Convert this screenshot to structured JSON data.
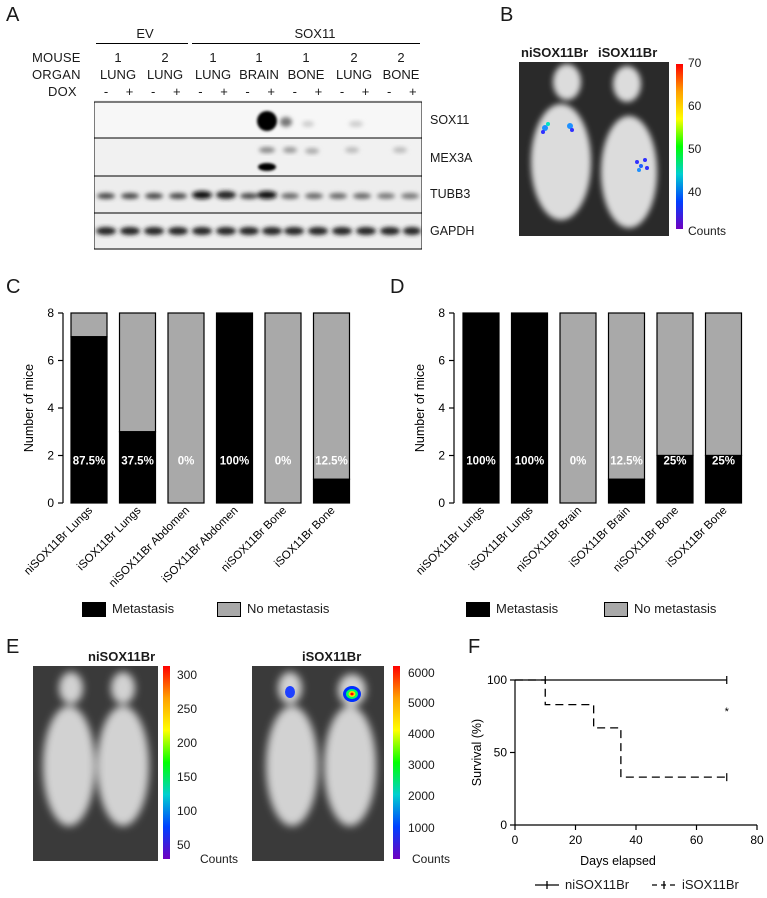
{
  "panels": {
    "A": "A",
    "B": "B",
    "C": "C",
    "D": "D",
    "E": "E",
    "F": "F"
  },
  "panelA": {
    "row_titles": [
      "MOUSE",
      "ORGAN",
      "DOX"
    ],
    "groups": [
      {
        "label": "EV"
      },
      {
        "label": "SOX11"
      }
    ],
    "mouse": [
      "1",
      "2",
      "1",
      "1",
      "1",
      "2",
      "2"
    ],
    "organ": [
      "LUNG",
      "LUNG",
      "LUNG",
      "BRAIN",
      "BONE",
      "LUNG",
      "BONE"
    ],
    "dox": [
      "-",
      "+",
      "-",
      "+",
      "-",
      "+",
      "-",
      "+",
      "-",
      "+",
      "-",
      "+",
      "-",
      "+"
    ],
    "blots": [
      "SOX11",
      "MEX3A",
      "TUBB3",
      "GAPDH"
    ]
  },
  "panelB": {
    "title_left": "niSOX11Br",
    "title_right": "iSOX11Br",
    "scale_ticks": [
      "70",
      "60",
      "50",
      "40"
    ],
    "scale_label": "Counts"
  },
  "chart_data": [
    {
      "type": "bar",
      "panel": "C",
      "ylabel": "Number of mice",
      "ylim": [
        0,
        8
      ],
      "yticks": [
        0,
        2,
        4,
        6,
        8
      ],
      "categories": [
        "niSOX11Br Lungs",
        "iSOX11Br Lungs",
        "niSOX11Br Abdomen",
        "iSOX11Br Abdomen",
        "niSOX11Br Bone",
        "iSOX11Br Bone"
      ],
      "series": [
        {
          "name": "Metastasis",
          "values": [
            7,
            3,
            0,
            8,
            0,
            1
          ]
        },
        {
          "name": "No metastasis",
          "values": [
            1,
            5,
            8,
            0,
            8,
            7
          ]
        }
      ],
      "data_labels": [
        "87.5%",
        "37.5%",
        "0%",
        "100%",
        "0%",
        "12.5%"
      ],
      "legend_position": "bottom"
    },
    {
      "type": "bar",
      "panel": "D",
      "ylabel": "Number of mice",
      "ylim": [
        0,
        8
      ],
      "yticks": [
        0,
        2,
        4,
        6,
        8
      ],
      "categories": [
        "niSOX11Br Lungs",
        "iSOX11Br Lungs",
        "niSOX11Br Brain",
        "iSOX11Br Brain",
        "niSOX11Br Bone",
        "iSOX11Br Bone"
      ],
      "series": [
        {
          "name": "Metastasis",
          "values": [
            8,
            8,
            0,
            1,
            2,
            2
          ]
        },
        {
          "name": "No metastasis",
          "values": [
            0,
            0,
            8,
            7,
            6,
            6
          ]
        }
      ],
      "data_labels": [
        "100%",
        "100%",
        "0%",
        "12.5%",
        "25%",
        "25%"
      ],
      "legend_position": "bottom"
    },
    {
      "type": "line",
      "panel": "F",
      "xlabel": "Days elapsed",
      "ylabel": "Survival (%)",
      "xlim": [
        0,
        80
      ],
      "ylim": [
        0,
        100
      ],
      "xticks": [
        0,
        20,
        40,
        60,
        80
      ],
      "yticks": [
        0,
        50,
        100
      ],
      "series": [
        {
          "name": "niSOX11Br",
          "style": "solid",
          "x": [
            0,
            70
          ],
          "y": [
            100,
            100
          ]
        },
        {
          "name": "iSOX11Br",
          "style": "dashed",
          "x": [
            0,
            10,
            10,
            26,
            26,
            35,
            35,
            70
          ],
          "y": [
            100,
            100,
            83,
            83,
            67,
            67,
            33,
            33
          ]
        }
      ],
      "annotation": "*",
      "legend_position": "bottom"
    }
  ],
  "legendCD": {
    "metastasis": "Metastasis",
    "no_metastasis": "No metastasis"
  },
  "colors": {
    "metastasis": "#000000",
    "no_metastasis": "#a9a9a9"
  },
  "panelE": {
    "left_title": "niSOX11Br",
    "right_title": "iSOX11Br",
    "left_ticks": [
      "300",
      "250",
      "200",
      "150",
      "100",
      "50"
    ],
    "right_ticks": [
      "6000",
      "5000",
      "4000",
      "3000",
      "2000",
      "1000"
    ],
    "scale_label": "Counts"
  },
  "legendF": {
    "ni": "niSOX11Br",
    "i": "iSOX11Br"
  }
}
